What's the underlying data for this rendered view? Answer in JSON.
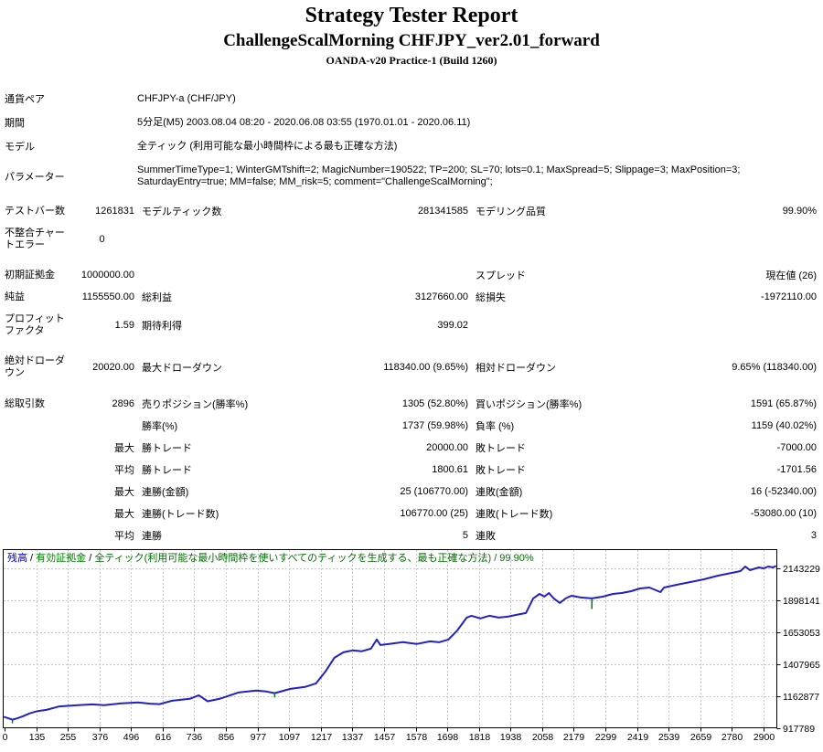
{
  "header": {
    "title": "Strategy Tester Report",
    "subtitle": "ChallengeScalMorning CHFJPY_ver2.01_forward",
    "build": "OANDA-v20 Practice-1 (Build 1260)"
  },
  "info_rows": [
    {
      "label": "通貨ペア",
      "value": "CHFJPY-a (CHF/JPY)"
    },
    {
      "label": "期間",
      "value": "5分足(M5) 2003.08.04 08:20 - 2020.06.08 03:55 (1970.01.01 - 2020.06.11)"
    },
    {
      "label": "モデル",
      "value": "全ティック (利用可能な最小時間枠による最も正確な方法)"
    },
    {
      "label": "パラメーター",
      "value": "SummerTimeType=1; WinterGMTshift=2; MagicNumber=190522; TP=200; SL=70; lots=0.1; MaxSpread=5; Slippage=3; MaxPosition=3;\nSaturdayEntry=true; MM=false; MM_risk=5; comment=\"ChallengeScalMorning\";"
    }
  ],
  "stat_rows": [
    {
      "c1": "テストバー数",
      "c2": "1261831",
      "c3": "モデルティック数",
      "c4": "281341585",
      "c5": "モデリング品質",
      "c6": "99.90%"
    },
    {
      "c1": "不整合チャートエラー",
      "c2": "0",
      "c3": "",
      "c4": "",
      "c5": "",
      "c6": "",
      "tall": true,
      "c2center": true
    },
    {
      "spacer": 8
    },
    {
      "c1": "初期証拠金",
      "c2": "1000000.00",
      "c3": "",
      "c4": "",
      "c5": "スプレッド",
      "c6": "現在値 (26)"
    },
    {
      "c1": "純益",
      "c2": "1155550.00",
      "c3": "総利益",
      "c4": "3127660.00",
      "c5": "総損失",
      "c6": "-1972110.00"
    },
    {
      "c1": "プロフィットファクタ",
      "c2": "1.59",
      "c3": "期待利得",
      "c4": "399.02",
      "c5": "",
      "c6": "",
      "tall": true
    },
    {
      "spacer": 8
    },
    {
      "c1": "絶対ドローダウン",
      "c2": "20020.00",
      "c3": "最大ドローダウン",
      "c4": "118340.00 (9.65%)",
      "c5": "相対ドローダウン",
      "c6": "9.65% (118340.00)",
      "tall": true
    },
    {
      "spacer": 9
    },
    {
      "c1": "総取引数",
      "c2": "2896",
      "c3": "売りポジション(勝率%)",
      "c4": "1305 (52.80%)",
      "c5": "買いポジション(勝率%)",
      "c6": "1591 (65.87%)"
    },
    {
      "c1": "",
      "c2": "",
      "c3": "勝率(%)",
      "c4": "1737 (59.98%)",
      "c5": "負率 (%)",
      "c6": "1159 (40.02%)"
    },
    {
      "c1": "",
      "c2": "最大",
      "c3": "勝トレード",
      "c4": "20000.00",
      "c5": "敗トレード",
      "c6": "-7000.00"
    },
    {
      "c1": "",
      "c2": "平均",
      "c3": "勝トレード",
      "c4": "1800.61",
      "c5": "敗トレード",
      "c6": "-1701.56"
    },
    {
      "c1": "",
      "c2": "最大",
      "c3": "連勝(金額)",
      "c4": "25 (106770.00)",
      "c5": "連敗(金額)",
      "c6": "16 (-52340.00)"
    },
    {
      "c1": "",
      "c2": "最大",
      "c3": "連勝(トレード数)",
      "c4": "106770.00 (25)",
      "c5": "連敗(トレード数)",
      "c6": "-53080.00 (10)"
    },
    {
      "c1": "",
      "c2": "平均",
      "c3": "連勝",
      "c4": "5",
      "c5": "連敗",
      "c6": "3"
    }
  ],
  "chart_data": {
    "type": "line",
    "legend": {
      "balance_label": "残高",
      "separator": " / ",
      "equity_label": "有効証拠金",
      "method_and_quality": "全ティック(利用可能な最小時間枠を使いすべてのティックを生成する、最も正確な方法) / 99.90%"
    },
    "xlabel": "",
    "ylabel": "",
    "x_ticks": [
      0,
      135,
      255,
      376,
      496,
      616,
      736,
      856,
      977,
      1097,
      1217,
      1337,
      1457,
      1578,
      1698,
      1818,
      1938,
      2058,
      2179,
      2299,
      2419,
      2539,
      2659,
      2780,
      2900
    ],
    "y_ticks": [
      917789,
      1162877,
      1407965,
      1653053,
      1898141,
      2143229
    ],
    "ylim": [
      917789,
      2143229
    ],
    "xlim": [
      0,
      2950
    ],
    "grid": "dashed",
    "balance_color": "#2121c8",
    "equity_color": "#008000",
    "balance_series": [
      [
        0,
        1000000
      ],
      [
        12,
        993000
      ],
      [
        30,
        980000
      ],
      [
        48,
        990000
      ],
      [
        70,
        1006000
      ],
      [
        95,
        1028000
      ],
      [
        126,
        1046000
      ],
      [
        160,
        1055000
      ],
      [
        206,
        1080000
      ],
      [
        240,
        1086000
      ],
      [
        280,
        1091000
      ],
      [
        335,
        1097000
      ],
      [
        380,
        1091000
      ],
      [
        440,
        1104000
      ],
      [
        510,
        1112000
      ],
      [
        556,
        1103000
      ],
      [
        592,
        1099000
      ],
      [
        640,
        1125000
      ],
      [
        708,
        1140000
      ],
      [
        742,
        1167000
      ],
      [
        776,
        1121000
      ],
      [
        824,
        1141000
      ],
      [
        893,
        1188000
      ],
      [
        962,
        1203000
      ],
      [
        1000,
        1196000
      ],
      [
        1032,
        1183000
      ],
      [
        1092,
        1216000
      ],
      [
        1148,
        1231000
      ],
      [
        1190,
        1258000
      ],
      [
        1226,
        1349000
      ],
      [
        1260,
        1454000
      ],
      [
        1295,
        1496000
      ],
      [
        1330,
        1511000
      ],
      [
        1364,
        1504000
      ],
      [
        1400,
        1524000
      ],
      [
        1422,
        1594000
      ],
      [
        1436,
        1552000
      ],
      [
        1470,
        1560000
      ],
      [
        1522,
        1574000
      ],
      [
        1574,
        1560000
      ],
      [
        1626,
        1580000
      ],
      [
        1660,
        1573000
      ],
      [
        1696,
        1594000
      ],
      [
        1730,
        1664000
      ],
      [
        1766,
        1762000
      ],
      [
        1784,
        1776000
      ],
      [
        1818,
        1756000
      ],
      [
        1852,
        1776000
      ],
      [
        1888,
        1762000
      ],
      [
        1922,
        1769000
      ],
      [
        1956,
        1783000
      ],
      [
        1992,
        1797000
      ],
      [
        2020,
        1909000
      ],
      [
        2044,
        1944000
      ],
      [
        2062,
        1923000
      ],
      [
        2080,
        1951000
      ],
      [
        2098,
        1909000
      ],
      [
        2122,
        1874000
      ],
      [
        2144,
        1909000
      ],
      [
        2166,
        1930000
      ],
      [
        2202,
        1916000
      ],
      [
        2244,
        1909000
      ],
      [
        2288,
        1923000
      ],
      [
        2324,
        1944000
      ],
      [
        2358,
        1951000
      ],
      [
        2394,
        1965000
      ],
      [
        2428,
        1986000
      ],
      [
        2464,
        1993000
      ],
      [
        2506,
        1958000
      ],
      [
        2520,
        1993000
      ],
      [
        2568,
        2014000
      ],
      [
        2620,
        2035000
      ],
      [
        2672,
        2056000
      ],
      [
        2726,
        2084000
      ],
      [
        2778,
        2105000
      ],
      [
        2812,
        2119000
      ],
      [
        2830,
        2154000
      ],
      [
        2848,
        2126000
      ],
      [
        2882,
        2147000
      ],
      [
        2900,
        2140000
      ],
      [
        2918,
        2154000
      ],
      [
        2936,
        2147000
      ],
      [
        2945,
        2155550
      ]
    ],
    "equity_drawdown_spikes": [
      {
        "x": 30,
        "from": 980000,
        "to": 952000
      },
      {
        "x": 1032,
        "from": 1183000,
        "to": 1150000
      },
      {
        "x": 2244,
        "from": 1909000,
        "to": 1828000
      }
    ]
  }
}
